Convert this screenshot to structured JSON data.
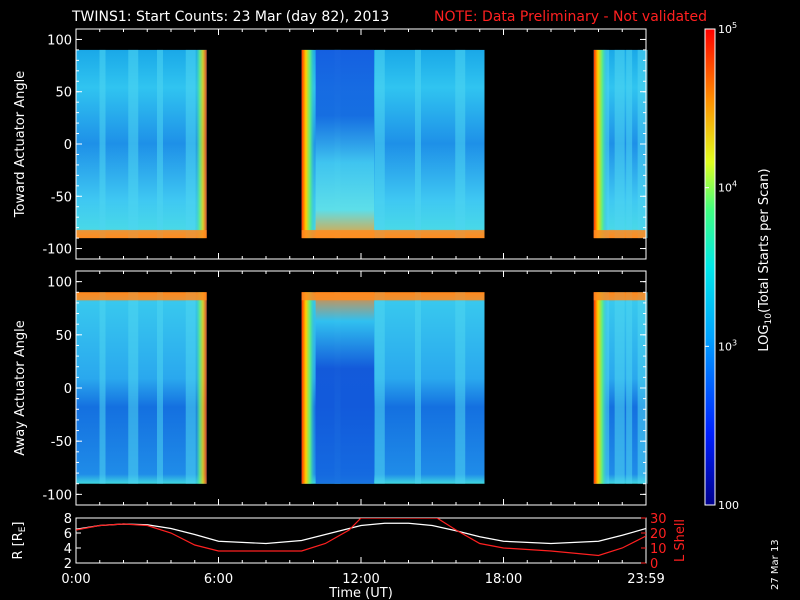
{
  "title": {
    "main": "TWINS1: Start Counts: 23 Mar (day  82), 2013",
    "note": "NOTE: Data Preliminary - Not validated"
  },
  "date_stamp": "27 Mar 13",
  "colors": {
    "background": "#000000",
    "axes": "#ffffff",
    "note": "#ff2020",
    "lshell": "#ff2020",
    "r": "#ffffff"
  },
  "chart_data": [
    {
      "type": "heatmap",
      "name": "toward-panel",
      "ylabel": "Toward Actuator Angle",
      "ylim": [
        -110,
        110
      ],
      "yticks": [
        "100",
        "50",
        "0",
        "-50",
        "-100"
      ],
      "x_unit": "hours UT",
      "xlim": [
        0,
        24
      ],
      "data_intervals_hours": [
        [
          0,
          5.5
        ],
        [
          9.5,
          17.2
        ],
        [
          21.8,
          24
        ]
      ],
      "angle_range": [
        -90,
        90
      ],
      "colorscale": "log10 counts, 100 to 1e5"
    },
    {
      "type": "heatmap",
      "name": "away-panel",
      "ylabel": "Away Actuator Angle",
      "ylim": [
        -110,
        110
      ],
      "yticks": [
        "100",
        "50",
        "0",
        "-50",
        "-100"
      ],
      "x_unit": "hours UT",
      "xlim": [
        0,
        24
      ],
      "data_intervals_hours": [
        [
          0,
          5.5
        ],
        [
          9.5,
          17.2
        ],
        [
          21.8,
          24
        ]
      ],
      "angle_range": [
        -90,
        90
      ],
      "colorscale": "log10 counts, 100 to 1e5"
    },
    {
      "type": "line",
      "name": "ephemeris-panel",
      "xlabel": "Time (UT)",
      "xticks": [
        "0:00",
        "6:00",
        "12:00",
        "18:00",
        "23:59"
      ],
      "xlim": [
        0,
        24
      ],
      "left_axis": {
        "label": "R [R",
        "label_sub": "E",
        "label_end": "]",
        "ylim": [
          2,
          8
        ],
        "ticks": [
          "8",
          "6",
          "4",
          "2"
        ]
      },
      "right_axis": {
        "label": "L Shell",
        "ylim": [
          0,
          30
        ],
        "ticks": [
          "30",
          "20",
          "10",
          "0"
        ]
      },
      "series": [
        {
          "axis": "left",
          "color": "#ffffff",
          "x": [
            0,
            1,
            2,
            3,
            4,
            5,
            6,
            8,
            9.5,
            11,
            12,
            13,
            14,
            15,
            16,
            17,
            18,
            20,
            22,
            23,
            24
          ],
          "values": [
            6.5,
            7.0,
            7.2,
            7.1,
            6.6,
            5.8,
            4.9,
            4.6,
            5.0,
            6.2,
            7.0,
            7.3,
            7.3,
            7.0,
            6.3,
            5.5,
            4.9,
            4.6,
            4.9,
            5.7,
            6.6
          ]
        },
        {
          "axis": "right",
          "color": "#ff2020",
          "x": [
            0,
            1,
            2,
            3,
            4,
            5,
            6,
            8,
            9.5,
            10.5,
            11.5,
            12,
            15.2,
            16,
            17,
            18,
            20,
            22,
            23,
            24
          ],
          "values": [
            22,
            25,
            26,
            25,
            20,
            12,
            8,
            8,
            8,
            13,
            22,
            30,
            30,
            22,
            13,
            10,
            8,
            5,
            10,
            18
          ]
        }
      ]
    },
    {
      "type": "heatmap",
      "name": "colorbar",
      "label_prefix": "LOG",
      "label_sub": "10",
      "label_suffix": "(Total Starts per Scan)",
      "ticks": [
        {
          "base": "10",
          "exp": "5",
          "value": 100000
        },
        {
          "base": "10",
          "exp": "4",
          "value": 10000
        },
        {
          "base": "10",
          "exp": "3",
          "value": 1000
        },
        {
          "base": "100",
          "exp": "",
          "value": 100
        }
      ],
      "range": [
        100,
        100000
      ]
    }
  ]
}
